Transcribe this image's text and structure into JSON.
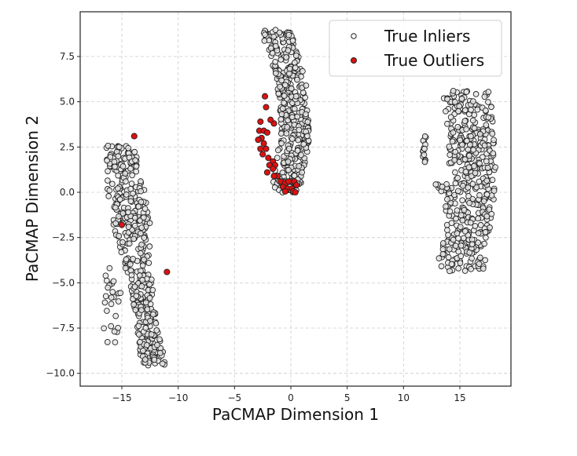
{
  "chart_data": {
    "type": "scatter",
    "title": "",
    "xlabel": "PaCMAP Dimension 1",
    "ylabel": "PaCMAP Dimension 2",
    "xlim": [
      -18.5,
      19.5
    ],
    "ylim": [
      -10.7,
      9.9
    ],
    "xticks": [
      -15,
      -10,
      -5,
      0,
      5,
      10,
      15
    ],
    "xtick_labels": [
      "−15",
      "−10",
      "−5",
      "0",
      "5",
      "10",
      "15"
    ],
    "yticks": [
      -10.0,
      -7.5,
      -5.0,
      -2.5,
      0.0,
      2.5,
      5.0,
      7.5
    ],
    "ytick_labels": [
      "−10.0",
      "−7.5",
      "−5.0",
      "−2.5",
      "0.0",
      "2.5",
      "5.0",
      "7.5"
    ],
    "grid": true,
    "legend_position": "upper right",
    "series": [
      {
        "name": "True Inliers",
        "color": "#e6e6e6",
        "edgecolor": "#222222",
        "clusters": [
          {
            "label": "left",
            "x_range": [
              -17.0,
              -10.5
            ],
            "y_range": [
              -9.8,
              2.8
            ]
          },
          {
            "label": "middle",
            "x_range": [
              -3.2,
              2.5
            ],
            "y_range": [
              0.0,
              9.0
            ]
          },
          {
            "label": "right",
            "x_range": [
              11.5,
              18.0
            ],
            "y_range": [
              -4.4,
              5.6
            ]
          }
        ]
      },
      {
        "name": "True Outliers",
        "color": "#dd1111",
        "edgecolor": "#222222",
        "points": [
          [
            -13.9,
            3.1
          ],
          [
            -15.0,
            -1.8
          ],
          [
            -11.0,
            -4.4
          ],
          [
            -2.3,
            5.3
          ],
          [
            -2.2,
            4.7
          ],
          [
            -1.5,
            3.8
          ],
          [
            -1.8,
            4.0
          ],
          [
            -2.7,
            3.9
          ],
          [
            -2.8,
            3.4
          ],
          [
            -2.4,
            3.4
          ],
          [
            -2.1,
            3.3
          ],
          [
            -2.6,
            3.0
          ],
          [
            -2.9,
            2.9
          ],
          [
            -2.4,
            2.7
          ],
          [
            -2.7,
            2.4
          ],
          [
            -2.2,
            2.4
          ],
          [
            -2.5,
            2.1
          ],
          [
            -2.0,
            1.9
          ],
          [
            -1.6,
            1.7
          ],
          [
            -1.9,
            1.5
          ],
          [
            -1.4,
            1.5
          ],
          [
            -1.6,
            1.3
          ],
          [
            -2.1,
            1.1
          ],
          [
            -1.2,
            0.9
          ],
          [
            -0.9,
            0.6
          ],
          [
            -0.5,
            0.5
          ],
          [
            -0.2,
            0.6
          ],
          [
            0.3,
            0.6
          ],
          [
            0.5,
            0.4
          ],
          [
            -0.7,
            0.3
          ],
          [
            -0.3,
            0.2
          ],
          [
            0.1,
            0.2
          ],
          [
            -0.5,
            0.05
          ],
          [
            0.2,
            0.05
          ],
          [
            0.4,
            0.0
          ],
          [
            -1.5,
            0.9
          ]
        ]
      }
    ]
  },
  "legend": {
    "items": [
      {
        "label": "True Inliers",
        "color": "#ffffff"
      },
      {
        "label": "True Outliers",
        "color": "#dd1111"
      }
    ]
  }
}
